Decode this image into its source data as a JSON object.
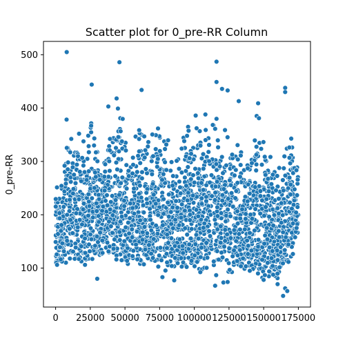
{
  "chart_data": {
    "type": "scatter",
    "title": "Scatter plot for 0_pre-RR Column",
    "xlabel": "",
    "ylabel": "0_pre-RR",
    "xlim": [
      -8750,
      183750
    ],
    "ylim": [
      27,
      525
    ],
    "x_ticks": [
      0,
      25000,
      50000,
      75000,
      100000,
      125000,
      150000,
      175000
    ],
    "x_tick_labels": [
      "0",
      "25000",
      "50000",
      "75000",
      "100000",
      "125000",
      "150000",
      "175000"
    ],
    "y_ticks": [
      100,
      200,
      300,
      400,
      500
    ],
    "y_tick_labels": [
      "100",
      "200",
      "300",
      "400",
      "500"
    ],
    "grid": false,
    "marker_color": "#1f77b4",
    "marker_edge_color": "#ffffff",
    "x_range": [
      0,
      175000
    ],
    "band": [
      {
        "x": 0,
        "lo": 95,
        "hi": 270
      },
      {
        "x": 5000,
        "lo": 95,
        "hi": 290
      },
      {
        "x": 8000,
        "lo": 100,
        "hi": 435
      },
      {
        "x": 12000,
        "lo": 100,
        "hi": 360
      },
      {
        "x": 17000,
        "lo": 95,
        "hi": 375
      },
      {
        "x": 21000,
        "lo": 95,
        "hi": 340
      },
      {
        "x": 25000,
        "lo": 100,
        "hi": 425
      },
      {
        "x": 30000,
        "lo": 110,
        "hi": 340
      },
      {
        "x": 35000,
        "lo": 105,
        "hi": 345
      },
      {
        "x": 40000,
        "lo": 110,
        "hi": 395
      },
      {
        "x": 45000,
        "lo": 100,
        "hi": 415
      },
      {
        "x": 50000,
        "lo": 95,
        "hi": 375
      },
      {
        "x": 55000,
        "lo": 95,
        "hi": 350
      },
      {
        "x": 60000,
        "lo": 90,
        "hi": 375
      },
      {
        "x": 65000,
        "lo": 90,
        "hi": 380
      },
      {
        "x": 70000,
        "lo": 85,
        "hi": 375
      },
      {
        "x": 75000,
        "lo": 90,
        "hi": 430
      },
      {
        "x": 80000,
        "lo": 85,
        "hi": 380
      },
      {
        "x": 85000,
        "lo": 85,
        "hi": 300
      },
      {
        "x": 90000,
        "lo": 85,
        "hi": 320
      },
      {
        "x": 95000,
        "lo": 90,
        "hi": 410
      },
      {
        "x": 100000,
        "lo": 80,
        "hi": 375
      },
      {
        "x": 105000,
        "lo": 85,
        "hi": 375
      },
      {
        "x": 110000,
        "lo": 85,
        "hi": 375
      },
      {
        "x": 115000,
        "lo": 80,
        "hi": 440
      },
      {
        "x": 120000,
        "lo": 90,
        "hi": 365
      },
      {
        "x": 125000,
        "lo": 90,
        "hi": 375
      },
      {
        "x": 130000,
        "lo": 85,
        "hi": 355
      },
      {
        "x": 135000,
        "lo": 90,
        "hi": 350
      },
      {
        "x": 140000,
        "lo": 85,
        "hi": 345
      },
      {
        "x": 145000,
        "lo": 80,
        "hi": 405
      },
      {
        "x": 150000,
        "lo": 80,
        "hi": 365
      },
      {
        "x": 155000,
        "lo": 80,
        "hi": 330
      },
      {
        "x": 160000,
        "lo": 75,
        "hi": 310
      },
      {
        "x": 165000,
        "lo": 70,
        "hi": 375
      },
      {
        "x": 170000,
        "lo": 110,
        "hi": 370
      },
      {
        "x": 175000,
        "lo": 150,
        "hi": 360
      }
    ],
    "outliers": [
      {
        "x": 8000,
        "y": 505
      },
      {
        "x": 46000,
        "y": 486
      },
      {
        "x": 116000,
        "y": 487
      },
      {
        "x": 26000,
        "y": 444
      },
      {
        "x": 62000,
        "y": 434
      },
      {
        "x": 116000,
        "y": 449
      },
      {
        "x": 120000,
        "y": 436
      },
      {
        "x": 124000,
        "y": 433
      },
      {
        "x": 165500,
        "y": 438
      },
      {
        "x": 165500,
        "y": 430
      },
      {
        "x": 44000,
        "y": 418
      },
      {
        "x": 38000,
        "y": 403
      },
      {
        "x": 132000,
        "y": 413
      },
      {
        "x": 146000,
        "y": 409
      },
      {
        "x": 108000,
        "y": 388
      },
      {
        "x": 101000,
        "y": 386
      },
      {
        "x": 30000,
        "y": 80
      },
      {
        "x": 85500,
        "y": 77
      },
      {
        "x": 115000,
        "y": 67
      },
      {
        "x": 121000,
        "y": 73
      },
      {
        "x": 124000,
        "y": 74
      },
      {
        "x": 164000,
        "y": 48
      },
      {
        "x": 165500,
        "y": 62
      },
      {
        "x": 167000,
        "y": 57
      },
      {
        "x": 160000,
        "y": 70
      },
      {
        "x": 150000,
        "y": 78
      },
      {
        "x": 140000,
        "y": 95
      },
      {
        "x": 77000,
        "y": 83
      }
    ]
  }
}
